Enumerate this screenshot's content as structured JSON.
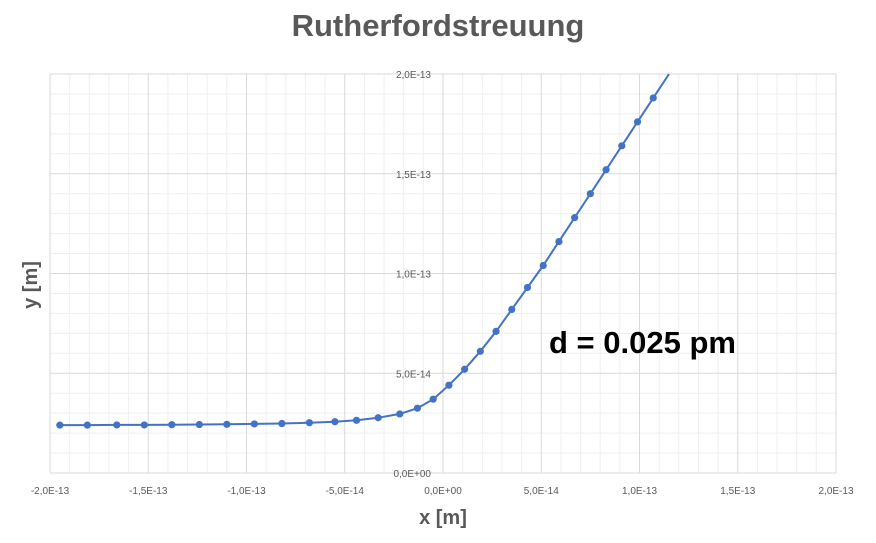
{
  "chart_data": {
    "type": "scatter",
    "title": "Rutherfordstreuung",
    "xlabel": "x [m]",
    "ylabel": "y [m]",
    "xlim": [
      -2e-13,
      2e-13
    ],
    "ylim": [
      0,
      2e-13
    ],
    "x_ticks": [
      "-2,0E-13",
      "-1,5E-13",
      "-1,0E-13",
      "-5,0E-14",
      "0,0E+00",
      "5,0E-14",
      "1,0E-13",
      "1,5E-13",
      "2,0E-13"
    ],
    "y_ticks": [
      "0,0E+00",
      "5,0E-14",
      "1,0E-13",
      "1,5E-13",
      "2,0E-13"
    ],
    "grid": true,
    "annotation": "d = 0.025 pm",
    "colors": {
      "series": "#4472c4",
      "grid": "#d9d9d9",
      "text": "#595959"
    },
    "series": [
      {
        "x": [
          -1.95e-13,
          -1.81e-13,
          -1.66e-13,
          -1.52e-13,
          -1.38e-13,
          -1.24e-13,
          -1.1e-13,
          -9.6e-14,
          -8.2e-14,
          -6.8e-14,
          -5.5e-14,
          -4.4e-14,
          -3.3e-14,
          -2.2e-14,
          -1.3e-14,
          -5e-15,
          3e-15,
          1.1e-14,
          1.9e-14,
          2.7e-14,
          3.5e-14,
          4.3e-14,
          5.1e-14,
          5.9e-14,
          6.7e-14,
          7.5e-14,
          8.3e-14,
          9.1e-14,
          9.9e-14,
          1.07e-13
        ],
        "y": [
          2.4e-14,
          2.4e-14,
          2.41e-14,
          2.41e-14,
          2.42e-14,
          2.43e-14,
          2.44e-14,
          2.46e-14,
          2.48e-14,
          2.52e-14,
          2.57e-14,
          2.64e-14,
          2.77e-14,
          2.96e-14,
          3.25e-14,
          3.7e-14,
          4.4e-14,
          5.2e-14,
          6.1e-14,
          7.1e-14,
          8.2e-14,
          9.3e-14,
          1.04e-13,
          1.16e-13,
          1.28e-13,
          1.4e-13,
          1.52e-13,
          1.64e-13,
          1.76e-13,
          1.88e-13
        ]
      }
    ]
  }
}
